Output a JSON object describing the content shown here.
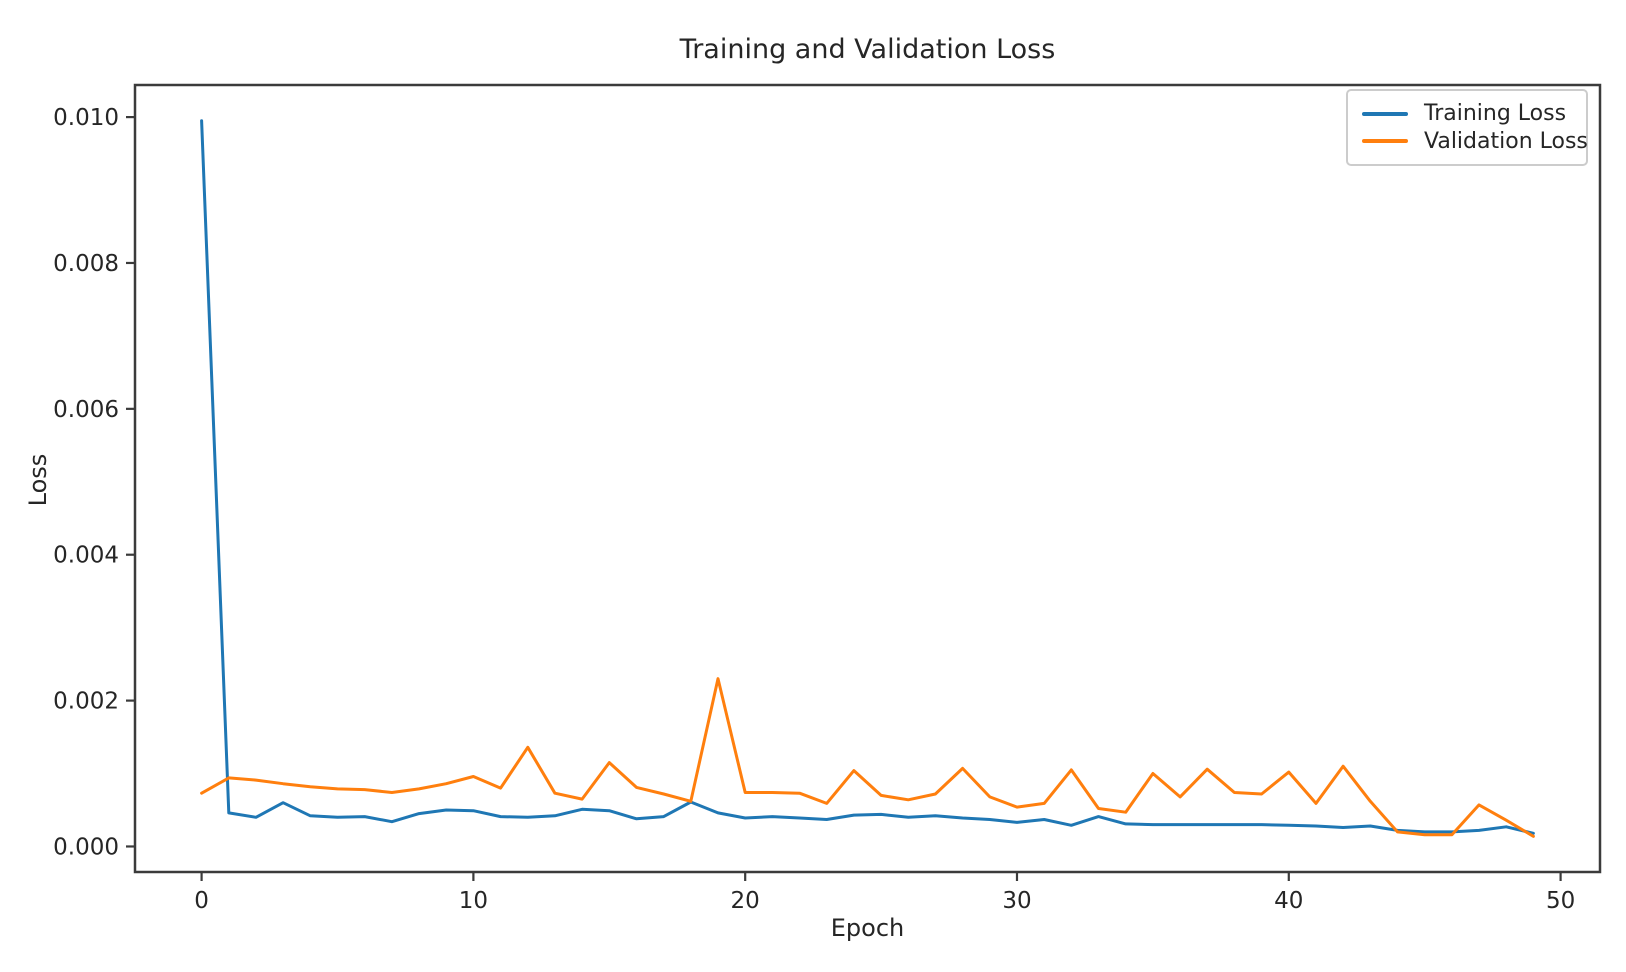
{
  "figure": {
    "title": "Training and Validation Loss",
    "xlabel": "Epoch",
    "ylabel": "Loss"
  },
  "legend": {
    "position": "upper right",
    "entries": [
      {
        "label": "Training Loss",
        "color": "#1f77b4"
      },
      {
        "label": "Validation Loss",
        "color": "#ff7f0e"
      }
    ]
  },
  "chart_data": {
    "type": "line",
    "title": "Training and Validation Loss",
    "xlabel": "Epoch",
    "ylabel": "Loss",
    "grid": false,
    "legend_position": "upper right",
    "x": [
      0,
      1,
      2,
      3,
      4,
      5,
      6,
      7,
      8,
      9,
      10,
      11,
      12,
      13,
      14,
      15,
      16,
      17,
      18,
      19,
      20,
      21,
      22,
      23,
      24,
      25,
      26,
      27,
      28,
      29,
      30,
      31,
      32,
      33,
      34,
      35,
      36,
      37,
      38,
      39,
      40,
      41,
      42,
      43,
      44,
      45,
      46,
      47,
      48,
      49
    ],
    "series": [
      {
        "name": "Training Loss",
        "color": "#1f77b4",
        "values": [
          0.00995,
          0.00046,
          0.0004,
          0.0006,
          0.00042,
          0.0004,
          0.00041,
          0.00034,
          0.00045,
          0.0005,
          0.00049,
          0.00041,
          0.0004,
          0.00042,
          0.00051,
          0.00049,
          0.00038,
          0.00041,
          0.00061,
          0.00046,
          0.00039,
          0.00041,
          0.00039,
          0.00037,
          0.00043,
          0.00044,
          0.0004,
          0.00042,
          0.00039,
          0.00037,
          0.00033,
          0.00037,
          0.00029,
          0.00041,
          0.00031,
          0.0003,
          0.0003,
          0.0003,
          0.0003,
          0.0003,
          0.00029,
          0.00028,
          0.00026,
          0.00028,
          0.00022,
          0.0002,
          0.0002,
          0.00022,
          0.00027,
          0.00018
        ]
      },
      {
        "name": "Validation Loss",
        "color": "#ff7f0e",
        "values": [
          0.00073,
          0.00094,
          0.00091,
          0.00086,
          0.00082,
          0.00079,
          0.00078,
          0.00074,
          0.00079,
          0.00086,
          0.00096,
          0.0008,
          0.00136,
          0.00073,
          0.00065,
          0.00115,
          0.00081,
          0.00072,
          0.00062,
          0.0023,
          0.00074,
          0.00074,
          0.00073,
          0.00059,
          0.00104,
          0.0007,
          0.00064,
          0.00072,
          0.00107,
          0.00068,
          0.00054,
          0.00059,
          0.00105,
          0.00052,
          0.00047,
          0.001,
          0.00068,
          0.00106,
          0.00074,
          0.00072,
          0.00102,
          0.00059,
          0.0011,
          0.00062,
          0.0002,
          0.00016,
          0.00016,
          0.00057,
          0.00036,
          0.00014
        ]
      }
    ],
    "xlim": [
      -2.45,
      51.45
    ],
    "ylim": [
      -0.00035,
      0.01044
    ],
    "xticks": [
      0,
      10,
      20,
      30,
      40,
      50
    ],
    "yticks": [
      0.0,
      0.002,
      0.004,
      0.006,
      0.008,
      0.01
    ],
    "xtick_labels": [
      "0",
      "10",
      "20",
      "30",
      "40",
      "50"
    ],
    "ytick_labels": [
      "0.000",
      "0.002",
      "0.004",
      "0.006",
      "0.008",
      "0.010"
    ]
  }
}
